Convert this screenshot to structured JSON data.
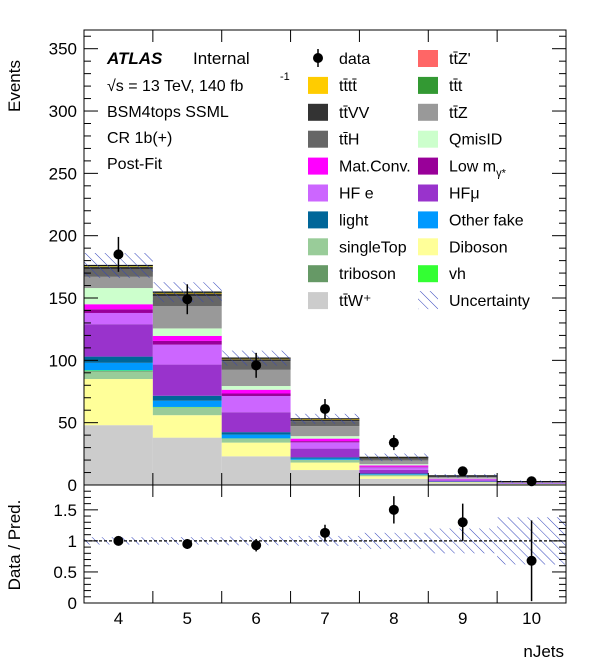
{
  "chart_data": [
    {
      "type": "bar",
      "stacked": true,
      "xlabel": "",
      "ylabel": "Events",
      "ylim": [
        0,
        365
      ],
      "yticks": [
        0,
        50,
        100,
        150,
        200,
        250,
        300,
        350
      ],
      "categories": [
        "4",
        "5",
        "6",
        "7",
        "8",
        "9",
        "10"
      ],
      "annotations": {
        "atlas": "ATLAS",
        "internal": "Internal",
        "energy_prefix": "√s = 13 TeV, 140 fb",
        "energy_sup": "-1",
        "region": "BSM4tops SSML",
        "cr": "CR 1b(+)",
        "fit": "Post-Fit"
      },
      "data": {
        "name": "data",
        "values": [
          185,
          149,
          96,
          61,
          34,
          11,
          3
        ],
        "errors": [
          14,
          12,
          10,
          8,
          6,
          3.3,
          1.7
        ]
      },
      "series": [
        {
          "name": "ttW+",
          "color": "#cccccc",
          "values": [
            48,
            38,
            23,
            12,
            5,
            1.5,
            0.5
          ]
        },
        {
          "name": "Diboson",
          "color": "#ffff99",
          "values": [
            37,
            18,
            11,
            6,
            2,
            0.6,
            0.2
          ]
        },
        {
          "name": "singleTop",
          "color": "#99cc99",
          "values": [
            6,
            6,
            3,
            2,
            1,
            0.3,
            0.1
          ]
        },
        {
          "name": "triboson",
          "color": "#669966",
          "values": [
            0.5,
            0.3,
            0.2,
            0.1,
            0.1,
            0,
            0
          ]
        },
        {
          "name": "vh",
          "color": "#33ff33",
          "values": [
            0.5,
            0.3,
            0.2,
            0.1,
            0.1,
            0,
            0
          ]
        },
        {
          "name": "Other fake",
          "color": "#0099ff",
          "values": [
            6,
            5,
            3,
            1,
            0.5,
            0.2,
            0.1
          ]
        },
        {
          "name": "light",
          "color": "#006699",
          "values": [
            5,
            4,
            2,
            1,
            0.5,
            0.2,
            0.1
          ]
        },
        {
          "name": "HF μ",
          "color": "#9933cc",
          "values": [
            26,
            25,
            16,
            7,
            3,
            1,
            0.3
          ]
        },
        {
          "name": "HF e",
          "color": "#cc66ff",
          "values": [
            9,
            16,
            13,
            5,
            2,
            0.7,
            0.3
          ]
        },
        {
          "name": "Low mγ*",
          "color": "#990099",
          "values": [
            3,
            3,
            2,
            1,
            0.5,
            0.2,
            0.1
          ]
        },
        {
          "name": "Mat.Conv.",
          "color": "#ff00ff",
          "values": [
            4,
            4,
            3,
            2,
            1,
            0.3,
            0.1
          ]
        },
        {
          "name": "QmisID",
          "color": "#ccffcc",
          "values": [
            13,
            6,
            3,
            2,
            1,
            0.3,
            0.1
          ]
        },
        {
          "name": "ttZ",
          "color": "#999999",
          "values": [
            9,
            18,
            13,
            8,
            3,
            1,
            0.4
          ]
        },
        {
          "name": "ttH",
          "color": "#666666",
          "values": [
            6,
            8,
            7,
            4,
            1.5,
            0.5,
            0.2
          ]
        },
        {
          "name": "ttVV",
          "color": "#333333",
          "values": [
            2,
            2,
            1.5,
            1,
            0.5,
            0.2,
            0.1
          ]
        },
        {
          "name": "tttt",
          "color": "#ffcc00",
          "values": [
            0.5,
            0.5,
            0.5,
            0.5,
            0.3,
            0.2,
            0.1
          ]
        },
        {
          "name": "ttt",
          "color": "#339933",
          "values": [
            0.3,
            0.3,
            0.2,
            0.2,
            0.1,
            0,
            0
          ]
        },
        {
          "name": "ttZ'",
          "color": "#ff6666",
          "values": [
            0.3,
            0.3,
            0.2,
            0.2,
            0.1,
            0.1,
            0
          ]
        }
      ],
      "uncertainty": {
        "name": "Uncertainty",
        "values": [
          10,
          8,
          6,
          4,
          3,
          1.5,
          1
        ]
      },
      "legend": [
        {
          "label": "data",
          "kind": "marker"
        },
        {
          "label": "tt̄Z'",
          "color": "#ff6666"
        },
        {
          "label": "tt̄tt̄",
          "color": "#ffcc00"
        },
        {
          "label": "tt̄t",
          "color": "#339933"
        },
        {
          "label": "tt̄VV",
          "color": "#333333"
        },
        {
          "label": "tt̄Z",
          "color": "#999999"
        },
        {
          "label": "tt̄H",
          "color": "#666666"
        },
        {
          "label": "QmisID",
          "color": "#ccffcc"
        },
        {
          "label": "Mat.Conv.",
          "color": "#ff00ff"
        },
        {
          "label": "Low m",
          "sub": "γ*",
          "color": "#990099"
        },
        {
          "label": "HF e",
          "color": "#cc66ff"
        },
        {
          "label": "HFμ",
          "color": "#9933cc"
        },
        {
          "label": "light",
          "color": "#006699"
        },
        {
          "label": "Other fake",
          "color": "#0099ff"
        },
        {
          "label": "singleTop",
          "color": "#99cc99"
        },
        {
          "label": "Diboson",
          "color": "#ffff99"
        },
        {
          "label": "triboson",
          "color": "#669966"
        },
        {
          "label": "vh",
          "color": "#33ff33"
        },
        {
          "label": "tt̄W⁺",
          "color": "#cccccc"
        },
        {
          "label": "Uncertainty",
          "kind": "hatch"
        }
      ]
    },
    {
      "type": "scatter",
      "xlabel": "nJets",
      "ylabel": "Data / Pred.",
      "ylim": [
        0,
        1.9
      ],
      "yticks": [
        0,
        0.5,
        1,
        1.5
      ],
      "xticks": [
        "4",
        "5",
        "6",
        "7",
        "8",
        "9",
        "10"
      ],
      "x": [
        4,
        5,
        6,
        7,
        8,
        9,
        10
      ],
      "values": [
        1.0,
        0.95,
        0.93,
        1.13,
        1.5,
        1.3,
        0.68
      ],
      "errors": [
        0.07,
        0.08,
        0.1,
        0.13,
        0.22,
        0.3,
        0.65
      ],
      "band": [
        0.06,
        0.06,
        0.07,
        0.08,
        0.13,
        0.2,
        0.38
      ],
      "reference_line": 1
    }
  ]
}
